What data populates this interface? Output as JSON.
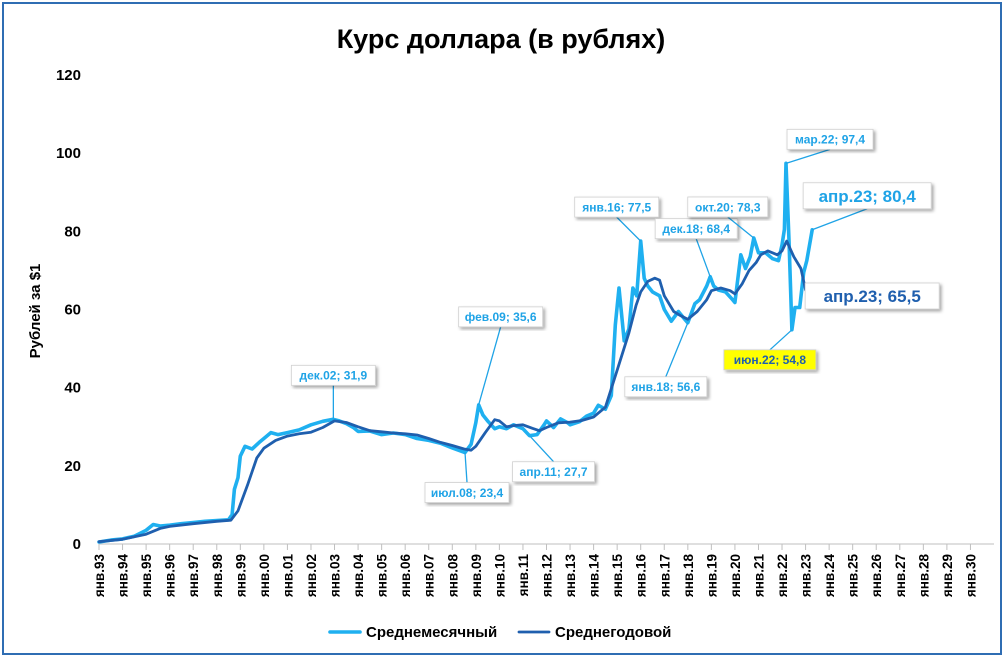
{
  "chart_data": {
    "type": "line",
    "title": "Курс доллара (в рублях)",
    "xlabel": "",
    "ylabel": "Рублей за $1",
    "ylim": [
      0,
      120
    ],
    "yticks": [
      0,
      20,
      40,
      60,
      80,
      100,
      120
    ],
    "xlim": [
      1993,
      2031
    ],
    "x_tick_labels": [
      "янв.93",
      "янв.94",
      "янв.95",
      "янв.96",
      "янв.97",
      "янв.98",
      "янв.99",
      "янв.00",
      "янв.01",
      "янв.02",
      "янв.03",
      "янв.04",
      "янв.05",
      "янв.06",
      "янв.07",
      "янв.08",
      "янв.09",
      "янв.10",
      "янв.11",
      "янв.12",
      "янв.13",
      "янв.14",
      "янв.15",
      "янв.16",
      "янв.17",
      "янв.18",
      "янв.19",
      "янв.20",
      "янв.21",
      "янв.22",
      "янв.23",
      "янв.24",
      "янв.25",
      "янв.26",
      "янв.27",
      "янв.28",
      "янв.29",
      "янв.30"
    ],
    "grid": false,
    "legend_position": "bottom",
    "series": [
      {
        "name": "Среднемесячный",
        "color": "#1fb0f0",
        "points": [
          [
            1993.0,
            0.5
          ],
          [
            1993.5,
            1.0
          ],
          [
            1994.0,
            1.3
          ],
          [
            1994.5,
            2.0
          ],
          [
            1995.0,
            3.5
          ],
          [
            1995.3,
            5.0
          ],
          [
            1995.6,
            4.6
          ],
          [
            1996.0,
            4.8
          ],
          [
            1996.5,
            5.2
          ],
          [
            1997.0,
            5.5
          ],
          [
            1997.5,
            5.8
          ],
          [
            1998.0,
            6.0
          ],
          [
            1998.5,
            6.2
          ],
          [
            1998.65,
            7.5
          ],
          [
            1998.75,
            14.0
          ],
          [
            1998.9,
            17.0
          ],
          [
            1999.0,
            22.5
          ],
          [
            1999.2,
            25.0
          ],
          [
            1999.5,
            24.3
          ],
          [
            1999.8,
            26.0
          ],
          [
            2000.0,
            27.0
          ],
          [
            2000.3,
            28.5
          ],
          [
            2000.6,
            28.0
          ],
          [
            2001.0,
            28.5
          ],
          [
            2001.5,
            29.2
          ],
          [
            2002.0,
            30.5
          ],
          [
            2002.5,
            31.4
          ],
          [
            2002.95,
            31.9
          ],
          [
            2003.2,
            31.5
          ],
          [
            2003.5,
            30.8
          ],
          [
            2003.8,
            29.8
          ],
          [
            2004.0,
            28.8
          ],
          [
            2004.5,
            28.9
          ],
          [
            2005.0,
            28.0
          ],
          [
            2005.5,
            28.4
          ],
          [
            2006.0,
            28.0
          ],
          [
            2006.5,
            27.0
          ],
          [
            2007.0,
            26.5
          ],
          [
            2007.5,
            25.8
          ],
          [
            2008.0,
            24.6
          ],
          [
            2008.54,
            23.4
          ],
          [
            2008.8,
            25.5
          ],
          [
            2009.0,
            31.0
          ],
          [
            2009.12,
            35.6
          ],
          [
            2009.3,
            33.0
          ],
          [
            2009.5,
            31.5
          ],
          [
            2009.8,
            29.5
          ],
          [
            2010.0,
            30.0
          ],
          [
            2010.3,
            29.5
          ],
          [
            2010.6,
            30.5
          ],
          [
            2011.0,
            29.5
          ],
          [
            2011.28,
            27.7
          ],
          [
            2011.6,
            28.0
          ],
          [
            2011.9,
            30.5
          ],
          [
            2012.0,
            31.5
          ],
          [
            2012.3,
            29.8
          ],
          [
            2012.6,
            32.0
          ],
          [
            2012.9,
            31.0
          ],
          [
            2013.0,
            30.5
          ],
          [
            2013.4,
            31.3
          ],
          [
            2013.7,
            32.7
          ],
          [
            2014.0,
            33.5
          ],
          [
            2014.2,
            35.5
          ],
          [
            2014.5,
            34.5
          ],
          [
            2014.75,
            38.0
          ],
          [
            2014.92,
            56.0
          ],
          [
            2015.08,
            65.5
          ],
          [
            2015.3,
            52.0
          ],
          [
            2015.5,
            55.0
          ],
          [
            2015.67,
            65.5
          ],
          [
            2015.83,
            63.5
          ],
          [
            2016.0,
            77.5
          ],
          [
            2016.15,
            68.0
          ],
          [
            2016.3,
            66.0
          ],
          [
            2016.5,
            64.5
          ],
          [
            2016.8,
            63.5
          ],
          [
            2017.0,
            60.0
          ],
          [
            2017.3,
            57.0
          ],
          [
            2017.6,
            59.5
          ],
          [
            2017.8,
            58.0
          ],
          [
            2018.0,
            56.6
          ],
          [
            2018.3,
            61.5
          ],
          [
            2018.5,
            62.5
          ],
          [
            2018.8,
            66.0
          ],
          [
            2018.95,
            68.4
          ],
          [
            2019.1,
            66.0
          ],
          [
            2019.3,
            65.0
          ],
          [
            2019.6,
            64.5
          ],
          [
            2019.9,
            62.5
          ],
          [
            2020.0,
            61.8
          ],
          [
            2020.25,
            74.0
          ],
          [
            2020.45,
            70.5
          ],
          [
            2020.65,
            73.5
          ],
          [
            2020.8,
            78.3
          ],
          [
            2021.0,
            74.5
          ],
          [
            2021.3,
            74.5
          ],
          [
            2021.6,
            73.0
          ],
          [
            2021.85,
            72.5
          ],
          [
            2022.0,
            76.5
          ],
          [
            2022.1,
            80.5
          ],
          [
            2022.17,
            97.4
          ],
          [
            2022.3,
            77.0
          ],
          [
            2022.42,
            54.8
          ],
          [
            2022.55,
            60.5
          ],
          [
            2022.75,
            60.5
          ],
          [
            2022.92,
            69.5
          ],
          [
            2023.05,
            72.5
          ],
          [
            2023.28,
            80.4
          ]
        ]
      },
      {
        "name": "Среднегодовой",
        "color": "#1f5fae",
        "points": [
          [
            1993.0,
            0.6
          ],
          [
            1994.0,
            1.2
          ],
          [
            1995.0,
            2.5
          ],
          [
            1995.6,
            4.0
          ],
          [
            1996.0,
            4.5
          ],
          [
            1997.0,
            5.2
          ],
          [
            1998.0,
            5.8
          ],
          [
            1998.6,
            6.1
          ],
          [
            1998.9,
            8.5
          ],
          [
            1999.3,
            15.0
          ],
          [
            1999.7,
            22.0
          ],
          [
            2000.0,
            24.5
          ],
          [
            2000.5,
            26.5
          ],
          [
            2001.0,
            27.6
          ],
          [
            2001.5,
            28.2
          ],
          [
            2002.0,
            28.6
          ],
          [
            2002.5,
            29.8
          ],
          [
            2003.0,
            31.5
          ],
          [
            2003.5,
            31.1
          ],
          [
            2004.0,
            30.0
          ],
          [
            2004.5,
            29.0
          ],
          [
            2005.0,
            28.7
          ],
          [
            2005.5,
            28.4
          ],
          [
            2006.0,
            28.2
          ],
          [
            2006.5,
            27.9
          ],
          [
            2007.0,
            27.0
          ],
          [
            2007.5,
            26.0
          ],
          [
            2008.0,
            25.2
          ],
          [
            2008.5,
            24.3
          ],
          [
            2008.8,
            24.0
          ],
          [
            2009.0,
            25.0
          ],
          [
            2009.4,
            28.5
          ],
          [
            2009.8,
            31.8
          ],
          [
            2010.0,
            31.5
          ],
          [
            2010.3,
            30.0
          ],
          [
            2010.6,
            30.3
          ],
          [
            2011.0,
            30.5
          ],
          [
            2011.4,
            29.6
          ],
          [
            2011.7,
            29.0
          ],
          [
            2012.0,
            29.8
          ],
          [
            2012.5,
            31.0
          ],
          [
            2013.0,
            31.2
          ],
          [
            2013.5,
            31.6
          ],
          [
            2014.0,
            32.5
          ],
          [
            2014.5,
            35.0
          ],
          [
            2015.0,
            44.5
          ],
          [
            2015.5,
            54.0
          ],
          [
            2015.8,
            61.0
          ],
          [
            2016.0,
            64.5
          ],
          [
            2016.3,
            67.2
          ],
          [
            2016.6,
            68.0
          ],
          [
            2016.8,
            67.5
          ],
          [
            2017.0,
            63.5
          ],
          [
            2017.4,
            59.5
          ],
          [
            2017.7,
            58.4
          ],
          [
            2018.0,
            57.5
          ],
          [
            2018.4,
            59.5
          ],
          [
            2018.8,
            62.5
          ],
          [
            2019.0,
            64.8
          ],
          [
            2019.4,
            65.5
          ],
          [
            2019.8,
            64.8
          ],
          [
            2020.0,
            64.0
          ],
          [
            2020.3,
            66.5
          ],
          [
            2020.6,
            70.0
          ],
          [
            2020.9,
            72.0
          ],
          [
            2021.1,
            74.0
          ],
          [
            2021.4,
            75.0
          ],
          [
            2021.8,
            74.0
          ],
          [
            2022.0,
            75.0
          ],
          [
            2022.2,
            77.5
          ],
          [
            2022.5,
            73.5
          ],
          [
            2022.8,
            70.5
          ],
          [
            2023.0,
            65.0
          ],
          [
            2023.28,
            65.5
          ]
        ]
      }
    ],
    "annotations": [
      {
        "text": "дек.02; 31,9",
        "x": 2002.95,
        "y": 31.9,
        "style": "normal"
      },
      {
        "text": "июл.08; 23,4",
        "x": 2008.54,
        "y": 23.4,
        "style": "normal"
      },
      {
        "text": "фев.09; 35,6",
        "x": 2009.12,
        "y": 35.6,
        "style": "normal"
      },
      {
        "text": "апр.11; 27,7",
        "x": 2011.28,
        "y": 27.7,
        "style": "normal"
      },
      {
        "text": "янв.16; 77,5",
        "x": 2016.0,
        "y": 77.5,
        "style": "normal"
      },
      {
        "text": "янв.18; 56,6",
        "x": 2018.0,
        "y": 56.6,
        "style": "normal"
      },
      {
        "text": "дек.18; 68,4",
        "x": 2018.95,
        "y": 68.4,
        "style": "normal"
      },
      {
        "text": "окт.20; 78,3",
        "x": 2020.8,
        "y": 78.3,
        "style": "normal"
      },
      {
        "text": "мар.22; 97,4",
        "x": 2022.17,
        "y": 97.4,
        "style": "normal"
      },
      {
        "text": "июн.22; 54,8",
        "x": 2022.42,
        "y": 54.8,
        "style": "highlight"
      },
      {
        "text": "апр.23; 80,4",
        "x": 2023.28,
        "y": 80.4,
        "style": "big-light"
      },
      {
        "text": "апр.23; 65,5",
        "x": 2023.28,
        "y": 65.5,
        "style": "big-dark"
      }
    ],
    "colors": {
      "frame": "#2f6db3",
      "monthly": "#1fb0f0",
      "annual": "#1f5fae",
      "annotation_text": "#1fa3e6",
      "highlight_fill": "#ffff00",
      "highlight_text": "#1f5fae"
    }
  }
}
